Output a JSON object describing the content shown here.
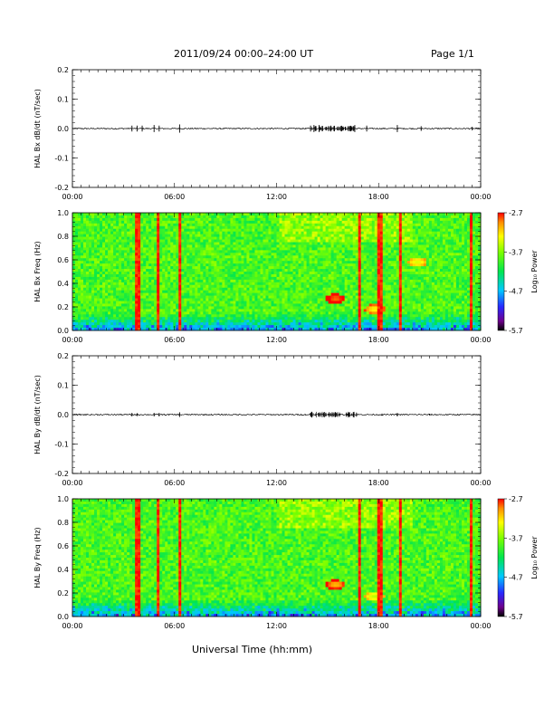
{
  "header": {
    "date_range": "2011/09/24  00:00–24:00 UT",
    "page": "Page 1/1"
  },
  "xlabel": "Universal Time (hh:mm)",
  "colors": {
    "line": "#000000",
    "background": "#ffffff"
  },
  "chart_data": [
    {
      "type": "line",
      "ylabel": "HAL Bx dB/dt (nT/sec)",
      "ylim": [
        -0.2,
        0.2
      ],
      "yticks": [
        "0.2",
        "0.1",
        "0.0",
        "-0.1",
        "-0.2"
      ],
      "xticks": [
        "00:00",
        "06:00",
        "12:00",
        "18:00",
        "00:00"
      ],
      "xlim_hours": [
        0,
        24
      ],
      "series": [
        {
          "values_note": "",
          "x": [
            0,
            3.5,
            3.8,
            4.1,
            4.8,
            5.1,
            6.3,
            10,
            14.0,
            14.2,
            14.5,
            15.2,
            16.2,
            16.6,
            17.3,
            19.1,
            20.5,
            23.5,
            24
          ],
          "y": [
            0,
            0.01,
            -0.01,
            0.01,
            0.012,
            -0.01,
            0.014,
            0,
            0.01,
            0.012,
            -0.012,
            0.01,
            0.008,
            0.012,
            -0.01,
            0.012,
            0.008,
            0.006,
            0
          ]
        }
      ]
    },
    {
      "type": "heatmap",
      "ylabel": "HAL Bx Freq (Hz)",
      "ylim": [
        0,
        1.0
      ],
      "yticks": [
        "1.0",
        "0.8",
        "0.6",
        "0.4",
        "0.2",
        "0.0"
      ],
      "xticks": [
        "00:00",
        "06:00",
        "12:00",
        "18:00",
        "00:00"
      ],
      "colorbar": {
        "label": "Log₁₀ Power",
        "ticks": [
          "-2.7",
          "-3.7",
          "-4.7",
          "-5.7"
        ],
        "range": [
          -5.7,
          -2.7
        ]
      },
      "vertical_spikes_hours": [
        3.75,
        5.0,
        6.25,
        16.8,
        18.0,
        19.2,
        23.3
      ],
      "hotspots": [
        {
          "hour": 15.4,
          "freq": 0.27,
          "level": -2.9
        },
        {
          "hour": 17.7,
          "freq": 0.18,
          "level": -3.3
        },
        {
          "hour": 20.2,
          "freq": 0.58,
          "level": -3.4
        }
      ]
    },
    {
      "type": "line",
      "ylabel": "HAL By dB/dt (nT/sec)",
      "ylim": [
        -0.2,
        0.2
      ],
      "yticks": [
        "0.2",
        "0.1",
        "0.0",
        "-0.1",
        "-0.2"
      ],
      "xticks": [
        "00:00",
        "06:00",
        "12:00",
        "18:00",
        "00:00"
      ],
      "xlim_hours": [
        0,
        24
      ],
      "series": [
        {
          "values_note": "",
          "x": [
            0,
            3.5,
            3.8,
            4.8,
            5.1,
            6.3,
            10,
            14.0,
            14.5,
            16.2,
            16.7,
            18.2,
            19.1,
            21,
            24
          ],
          "y": [
            0,
            0.006,
            -0.005,
            0.006,
            -0.006,
            0.008,
            0,
            0.006,
            -0.005,
            0.004,
            0.007,
            -0.004,
            0.006,
            0.003,
            0
          ]
        }
      ]
    },
    {
      "type": "heatmap",
      "ylabel": "HAL By Freq (Hz)",
      "ylim": [
        0,
        1.0
      ],
      "yticks": [
        "1.0",
        "0.8",
        "0.6",
        "0.4",
        "0.2",
        "0.0"
      ],
      "xticks": [
        "00:00",
        "06:00",
        "12:00",
        "18:00",
        "00:00"
      ],
      "colorbar": {
        "label": "Log₁₀ Power",
        "ticks": [
          "-2.7",
          "-3.7",
          "-4.7",
          "-5.7"
        ],
        "range": [
          -5.7,
          -2.7
        ]
      },
      "vertical_spikes_hours": [
        3.75,
        5.0,
        6.25,
        16.8,
        18.0,
        19.2,
        23.3
      ],
      "hotspots": [
        {
          "hour": 15.4,
          "freq": 0.27,
          "level": -3.1
        },
        {
          "hour": 17.7,
          "freq": 0.17,
          "level": -3.5
        }
      ]
    }
  ]
}
